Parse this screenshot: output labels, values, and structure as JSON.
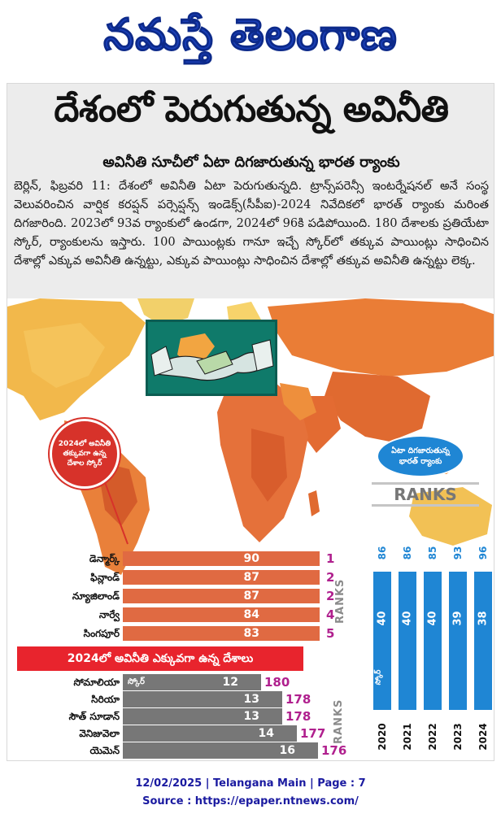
{
  "masthead": {
    "title": "నమస్తే తెలంగాణ"
  },
  "article": {
    "headline": "దేశంలో పెరుగుతున్న అవినీతి",
    "subheadline": "అవినీతి సూచీలో ఏటా దిగజారుతున్న భారత ర్యాంకు",
    "body": "బెర్లిన్, ఫిబ్రవరి 11: దేశంలో అవినీతి ఏటా పెరుగుతున్నది. ట్రాన్స్‌పరెన్సీ ఇంటర్నేషనల్ అనే సంస్థ వెలువరించిన వార్షిక కరప్షన్ పర్సెప్షన్స్ ఇండెక్స్(సీపీఐ)-2024 నివేదికలో భారత్ ర్యాంకు మరింత దిగజారింది. 2023లో 93వ ర్యాంకులో ఉండగా, 2024లో 96కి పడిపోయింది. 180 దేశాలకు ప్రతియేటా స్కోర్, ర్యాంకులను ఇస్తారు. 100 పాయింట్లకు గానూ ఇచ్చే స్కోర్‌లో తక్కువ పాయింట్లు సాధించిన దేశాల్లో ఎక్కువ అవినీతి ఉన్నట్టు, ఎక్కువ పాయింట్లు సాధించిన దేశాల్లో తక్కువ అవినీతి ఉన్నట్టు లెక్క."
  },
  "colors": {
    "accent_red": "#e8242d",
    "bar_orange": "#e06a42",
    "bar_grey": "#777777",
    "rank_purple": "#b0208e",
    "column_blue": "#1f86d4",
    "masthead_blue": "#1a3fb8"
  },
  "infographic": {
    "icons": {
      "cartoon": "handshake-bribe-illustration",
      "map": "world-map"
    },
    "top_callout": "2024లో అవినీతి తక్కువగా ఉన్న దేశాల స్కోర్",
    "ranks_label": "RANKS",
    "top_countries": [
      {
        "name": "డెన్మార్క్",
        "score": "90",
        "rank": "1"
      },
      {
        "name": "ఫిన్లాండ్",
        "score": "87",
        "rank": "2"
      },
      {
        "name": "న్యూజిలాండ్",
        "score": "87",
        "rank": "2"
      },
      {
        "name": "నార్వే",
        "score": "84",
        "rank": "4"
      },
      {
        "name": "సింగపూర్",
        "score": "83",
        "rank": "5"
      }
    ],
    "low_banner": "2024లో అవినీతి ఎక్కువగా ఉన్న దేశాలు",
    "score_word": "స్కోర్",
    "bottom_countries": [
      {
        "name": "సోమాలియా",
        "score": "12",
        "rank": "180"
      },
      {
        "name": "సిరియా",
        "score": "13",
        "rank": "178"
      },
      {
        "name": "సౌత్ సూడాన్",
        "score": "13",
        "rank": "178"
      },
      {
        "name": "వెనిజువెలా",
        "score": "14",
        "rank": "177"
      },
      {
        "name": "యెమెన్",
        "score": "16",
        "rank": "176"
      }
    ],
    "india_callout": "ఏటా దిగజారుతున్న భారత్ ర్యాంకు",
    "india_ranks_label": "RANKS",
    "india_years": [
      {
        "year": "2020",
        "rank": "86",
        "score": "40"
      },
      {
        "year": "2021",
        "rank": "86",
        "score": "40"
      },
      {
        "year": "2022",
        "rank": "85",
        "score": "40"
      },
      {
        "year": "2023",
        "rank": "93",
        "score": "39"
      },
      {
        "year": "2024",
        "rank": "96",
        "score": "38"
      }
    ]
  },
  "footer": {
    "line1": "12/02/2025 | Telangana Main | Page : 7",
    "line2": "Source : https://epaper.ntnews.com/"
  }
}
